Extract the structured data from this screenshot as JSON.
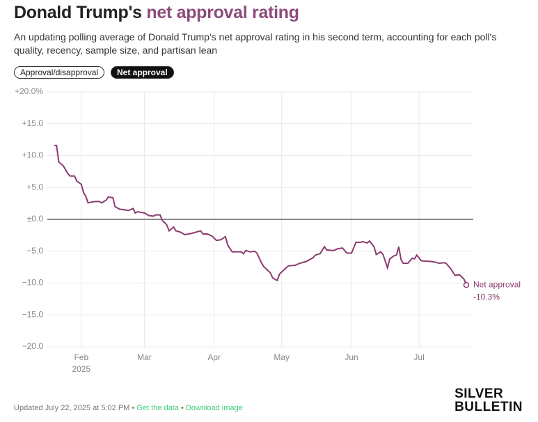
{
  "chart_data": {
    "type": "line",
    "title_parts": [
      "Donald Trump's ",
      "net approval rating"
    ],
    "subtitle": "An updating polling average of Donald Trump's net approval rating in his second term, accounting for each poll's quality, recency, sample size, and partisan lean",
    "toggles": [
      "Approval/disapproval",
      "Net approval"
    ],
    "active_toggle": 1,
    "x": [
      "2025-01-20",
      "2025-01-21",
      "2025-01-22",
      "2025-01-24",
      "2025-01-26",
      "2025-01-27",
      "2025-01-29",
      "2025-01-30",
      "2025-02-01",
      "2025-02-02",
      "2025-02-03",
      "2025-02-04",
      "2025-02-07",
      "2025-02-09",
      "2025-02-10",
      "2025-02-12",
      "2025-02-13",
      "2025-02-15",
      "2025-02-16",
      "2025-02-18",
      "2025-02-20",
      "2025-02-22",
      "2025-02-24",
      "2025-02-25",
      "2025-02-26",
      "2025-03-01",
      "2025-03-03",
      "2025-03-05",
      "2025-03-06",
      "2025-03-08",
      "2025-03-09",
      "2025-03-10",
      "2025-03-11",
      "2025-03-12",
      "2025-03-14",
      "2025-03-15",
      "2025-03-17",
      "2025-03-19",
      "2025-03-22",
      "2025-03-24",
      "2025-03-26",
      "2025-03-27",
      "2025-03-29",
      "2025-03-31",
      "2025-04-02",
      "2025-04-04",
      "2025-04-06",
      "2025-04-07",
      "2025-04-09",
      "2025-04-13",
      "2025-04-14",
      "2025-04-15",
      "2025-04-17",
      "2025-04-19",
      "2025-04-20",
      "2025-04-22",
      "2025-04-23",
      "2025-04-26",
      "2025-04-27",
      "2025-04-29",
      "2025-04-30",
      "2025-05-03",
      "2025-05-04",
      "2025-05-07",
      "2025-05-09",
      "2025-05-12",
      "2025-05-15",
      "2025-05-16",
      "2025-05-18",
      "2025-05-20",
      "2025-05-21",
      "2025-05-24",
      "2025-05-26",
      "2025-05-28",
      "2025-05-30",
      "2025-06-01",
      "2025-06-03",
      "2025-06-05",
      "2025-06-06",
      "2025-06-08",
      "2025-06-09",
      "2025-06-11",
      "2025-06-12",
      "2025-06-14",
      "2025-06-15",
      "2025-06-17",
      "2025-06-18",
      "2025-06-20",
      "2025-06-21",
      "2025-06-22",
      "2025-06-23",
      "2025-06-24",
      "2025-06-26",
      "2025-06-28",
      "2025-06-29",
      "2025-06-30",
      "2025-07-02",
      "2025-07-06",
      "2025-07-08",
      "2025-07-10",
      "2025-07-12",
      "2025-07-13",
      "2025-07-15",
      "2025-07-17",
      "2025-07-19",
      "2025-07-21",
      "2025-07-22"
    ],
    "series": [
      {
        "name": "Net approval",
        "color": "#8b3a6e",
        "values": [
          11.6,
          11.6,
          9.0,
          8.4,
          7.2,
          6.8,
          6.8,
          6.0,
          5.5,
          4.2,
          3.6,
          2.6,
          2.8,
          2.8,
          2.6,
          3.0,
          3.5,
          3.4,
          2.0,
          1.6,
          1.5,
          1.4,
          1.7,
          1.0,
          1.2,
          1.0,
          0.6,
          0.5,
          0.7,
          0.7,
          -0.2,
          -0.5,
          -0.9,
          -1.8,
          -1.2,
          -1.8,
          -2.0,
          -2.4,
          -2.2,
          -2.0,
          -1.8,
          -2.3,
          -2.3,
          -2.6,
          -3.3,
          -3.2,
          -2.7,
          -4.0,
          -5.1,
          -5.1,
          -5.4,
          -4.9,
          -5.1,
          -5.0,
          -5.3,
          -6.8,
          -7.4,
          -8.4,
          -9.2,
          -9.6,
          -8.6,
          -7.6,
          -7.3,
          -7.2,
          -6.9,
          -6.6,
          -6.0,
          -5.6,
          -5.4,
          -4.3,
          -4.8,
          -4.9,
          -4.6,
          -4.5,
          -5.3,
          -5.3,
          -3.6,
          -3.6,
          -3.5,
          -3.7,
          -3.4,
          -4.3,
          -5.5,
          -5.1,
          -5.5,
          -7.6,
          -6.2,
          -5.7,
          -5.6,
          -4.3,
          -6.3,
          -6.9,
          -6.9,
          -6.1,
          -6.2,
          -5.6,
          -6.5,
          -6.6,
          -6.7,
          -6.9,
          -6.8,
          -6.9,
          -7.7,
          -8.8,
          -8.7,
          -9.4,
          -10.3
        ],
        "end_value_label": "-10.3%"
      }
    ],
    "xlim": [
      "2025-01-20",
      "2025-07-22"
    ],
    "xticks": [
      {
        "value": "2025-02-01",
        "label": "Feb"
      },
      {
        "value": "2025-03-01",
        "label": "Mar"
      },
      {
        "value": "2025-04-01",
        "label": "Apr"
      },
      {
        "value": "2025-05-01",
        "label": "May"
      },
      {
        "value": "2025-06-01",
        "label": "Jun"
      },
      {
        "value": "2025-07-01",
        "label": "Jul"
      }
    ],
    "year_label": "2025",
    "ylim": [
      -20,
      20
    ],
    "yticks": [
      {
        "value": 20,
        "label": "+20.0%"
      },
      {
        "value": 15,
        "label": "+15.0"
      },
      {
        "value": 10,
        "label": "+10.0"
      },
      {
        "value": 5,
        "label": "+5.0"
      },
      {
        "value": 0,
        "label": "±0.0"
      },
      {
        "value": -5,
        "label": "−5.0"
      },
      {
        "value": -10,
        "label": "−10.0"
      },
      {
        "value": -15,
        "label": "−15.0"
      },
      {
        "value": -20,
        "label": "−20.0"
      }
    ],
    "grid": true,
    "zero_line": true,
    "footer": {
      "updated": "Updated July 22, 2025 at 5:02 PM",
      "separator": "•",
      "links": [
        "Get the data",
        "Download image"
      ]
    },
    "logo": [
      "SILVER",
      "BULLETIN"
    ]
  }
}
